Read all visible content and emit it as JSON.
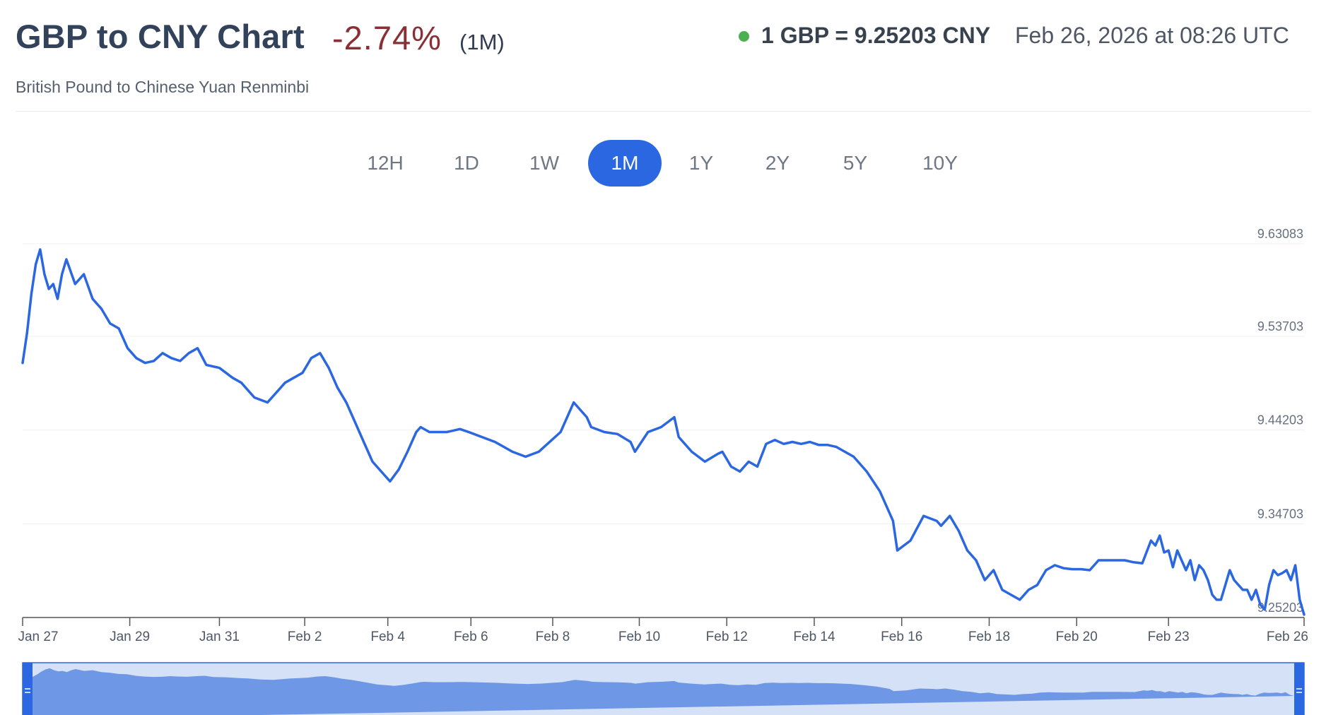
{
  "header": {
    "title": "GBP to CNY Chart",
    "change": "-2.74%",
    "period": "(1M)",
    "subtitle": "British Pound to Chinese Yuan Renminbi",
    "rate": "1 GBP = 9.25203 CNY",
    "timestamp": "Feb 26, 2026 at 08:26 UTC"
  },
  "tabs": [
    {
      "label": "12H",
      "active": false
    },
    {
      "label": "1D",
      "active": false
    },
    {
      "label": "1W",
      "active": false
    },
    {
      "label": "1M",
      "active": true
    },
    {
      "label": "1Y",
      "active": false
    },
    {
      "label": "2Y",
      "active": false
    },
    {
      "label": "5Y",
      "active": false
    },
    {
      "label": "10Y",
      "active": false
    }
  ],
  "colors": {
    "line": "#2b67e0",
    "negative": "#8a2f34",
    "live": "#4caf50",
    "navigator_fill": "#6e97e6",
    "navigator_bg": "#d5e1f7"
  },
  "chart_data": {
    "type": "line",
    "title": "GBP to CNY Chart",
    "series": [
      {
        "values_x_days": [
          0,
          0.1,
          0.2,
          0.3,
          0.4,
          0.5,
          0.6,
          0.7,
          0.8,
          0.9,
          1.0,
          1.2,
          1.4,
          1.6,
          1.8,
          2.0,
          2.2,
          2.4,
          2.6,
          2.8,
          3.0,
          3.2,
          3.4,
          3.6,
          3.8,
          4.0,
          4.2,
          4.5,
          4.8,
          5.0,
          5.3,
          5.6,
          5.9,
          6.0,
          6.2,
          6.4,
          6.6,
          6.8,
          7.0,
          7.2,
          7.4,
          7.6,
          7.8,
          8.0,
          8.2,
          8.4,
          8.6,
          8.8,
          9.0,
          9.1,
          9.3,
          9.5,
          9.7,
          9.9,
          10.0,
          10.2,
          10.5,
          10.8,
          11.0,
          11.2,
          11.5,
          11.8,
          12.0,
          12.3,
          12.6,
          12.9,
          13.0,
          13.3,
          13.6,
          13.9,
          14.0,
          14.3,
          14.6,
          14.9,
          15.0,
          15.3,
          15.6,
          15.9,
          16.0,
          16.2,
          16.4,
          16.6,
          16.8,
          17.0,
          17.2,
          17.4,
          17.6,
          17.8,
          18.0,
          18.2,
          18.4,
          18.6,
          18.8,
          19.0,
          19.3,
          19.6,
          19.9,
          20.0,
          20.3,
          20.6,
          20.9,
          21.0,
          21.2,
          21.4,
          21.6,
          21.8,
          22.0,
          22.2,
          22.4,
          22.6,
          22.8,
          23.0,
          23.2,
          23.4,
          23.6,
          23.8,
          24.0,
          24.2,
          24.4,
          24.6,
          24.8,
          25.0,
          25.2,
          25.4,
          25.6,
          25.8,
          25.9,
          26.0,
          26.1,
          26.2,
          26.3,
          26.4,
          26.5,
          26.6,
          26.7,
          26.8,
          26.9,
          27.0,
          27.1,
          27.2,
          27.3,
          27.4,
          27.5,
          27.6,
          27.7,
          27.8,
          27.9,
          28.0,
          28.1,
          28.2,
          28.3,
          28.4,
          28.5,
          28.6,
          28.7,
          28.8,
          28.9,
          29.0,
          29.1,
          29.2,
          29.3
        ],
        "values": [
          9.51,
          9.54,
          9.58,
          9.61,
          9.625,
          9.6,
          9.585,
          9.59,
          9.575,
          9.6,
          9.615,
          9.59,
          9.6,
          9.575,
          9.565,
          9.55,
          9.545,
          9.525,
          9.515,
          9.51,
          9.512,
          9.52,
          9.515,
          9.512,
          9.52,
          9.525,
          9.508,
          9.505,
          9.495,
          9.49,
          9.475,
          9.47,
          9.485,
          9.49,
          9.495,
          9.5,
          9.515,
          9.52,
          9.505,
          9.485,
          9.47,
          9.45,
          9.43,
          9.41,
          9.4,
          9.39,
          9.402,
          9.42,
          9.44,
          9.445,
          9.44,
          9.44,
          9.44,
          9.442,
          9.443,
          9.44,
          9.435,
          9.43,
          9.425,
          9.42,
          9.415,
          9.42,
          9.428,
          9.44,
          9.47,
          9.455,
          9.445,
          9.44,
          9.438,
          9.43,
          9.42,
          9.44,
          9.445,
          9.455,
          9.435,
          9.42,
          9.41,
          9.418,
          9.42,
          9.405,
          9.4,
          9.41,
          9.405,
          9.428,
          9.432,
          9.428,
          9.43,
          9.428,
          9.43,
          9.427,
          9.427,
          9.425,
          9.42,
          9.415,
          9.4,
          9.38,
          9.35,
          9.32,
          9.33,
          9.355,
          9.35,
          9.345,
          9.355,
          9.34,
          9.32,
          9.31,
          9.29,
          9.3,
          9.28,
          9.275,
          9.27,
          9.28,
          9.285,
          9.3,
          9.305,
          9.302,
          9.301,
          9.301,
          9.3,
          9.31,
          9.31,
          9.31,
          9.31,
          9.308,
          9.307,
          9.33,
          9.325,
          9.335,
          9.318,
          9.32,
          9.303,
          9.32,
          9.31,
          9.3,
          9.31,
          9.29,
          9.305,
          9.3,
          9.29,
          9.275,
          9.27,
          9.27,
          9.285,
          9.3,
          9.29,
          9.285,
          9.28,
          9.28,
          9.27,
          9.28,
          9.265,
          9.26,
          9.285,
          9.3,
          9.295,
          9.297,
          9.3,
          9.29,
          9.305,
          9.27,
          9.255,
          9.265,
          9.252
        ]
      }
    ],
    "x_ticks": [
      "Jan 27",
      "Jan 29",
      "Jan 31",
      "Feb 2",
      "Feb 4",
      "Feb 6",
      "Feb 8",
      "Feb 10",
      "Feb 12",
      "Feb 14",
      "Feb 16",
      "Feb 18",
      "Feb 20",
      "Feb 23",
      "Feb 26"
    ],
    "x_tick_days": [
      0,
      2.45,
      4.5,
      6.45,
      8.35,
      10.25,
      12.12,
      14.1,
      16.1,
      18.1,
      20.1,
      22.1,
      24.1,
      26.2,
      29.3
    ],
    "y_ticks": [
      "9.63083",
      "9.53703",
      "9.44203",
      "9.34703",
      "9.25203"
    ],
    "y_tick_values": [
      9.63083,
      9.53703,
      9.44203,
      9.34703,
      9.25203
    ],
    "ylim": [
      9.25203,
      9.63083
    ],
    "xlim": [
      0,
      29.3
    ],
    "grid": true,
    "navigator": true
  }
}
